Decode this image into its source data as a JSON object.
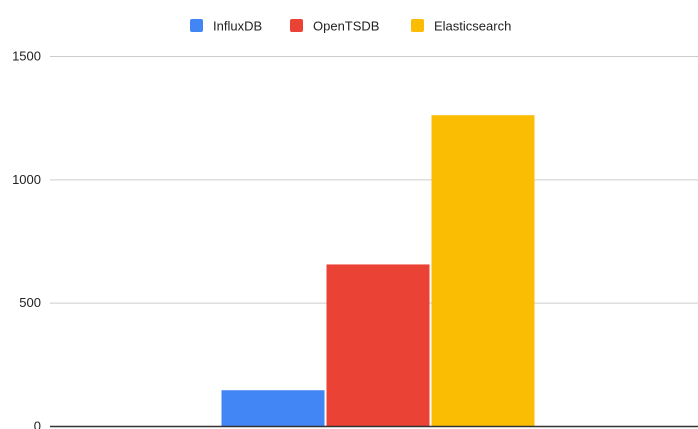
{
  "chart_data": {
    "type": "bar",
    "title": "",
    "xlabel": "",
    "ylabel": "",
    "categories": [
      ""
    ],
    "series": [
      {
        "name": "InfluxDB",
        "values": [
          145
        ],
        "color": "#4285f4"
      },
      {
        "name": "OpenTSDB",
        "values": [
          655
        ],
        "color": "#ea4335"
      },
      {
        "name": "Elasticsearch",
        "values": [
          1260
        ],
        "color": "#fbbc04"
      }
    ],
    "ylim": [
      0,
      1500
    ],
    "yticks": [
      "0",
      "500",
      "1000",
      "1500"
    ],
    "grid": true,
    "legend_position": "top-center"
  }
}
